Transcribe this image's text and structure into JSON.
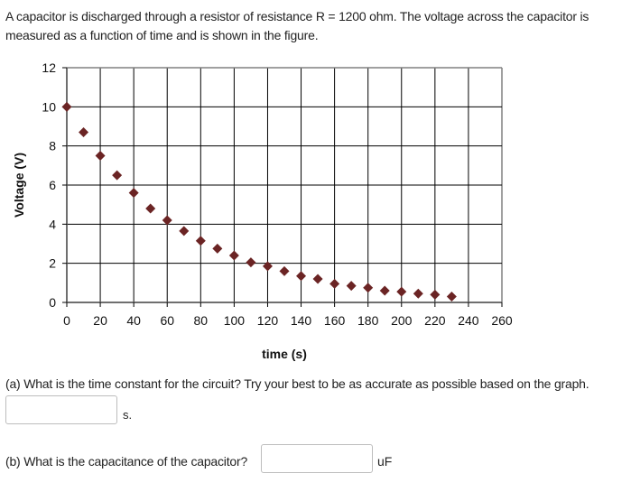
{
  "intro": {
    "text": "A capacitor is discharged through a resistor of resistance R = 1200 ohm.  The voltage across the capacitor is measured as a function of time and is shown in the figure."
  },
  "question_a": {
    "label": "(a) What is the time constant for the circuit?  Try your best to be as accurate as possible based on the graph.",
    "value": "",
    "placeholder": "",
    "unit": "s."
  },
  "question_b": {
    "label": "(b) What is the capacitance of the capacitor?",
    "value": "",
    "placeholder": "",
    "unit": "uF"
  },
  "colors": {
    "marker": "#6b2424",
    "grid": "#000000",
    "frame": "#808080"
  },
  "chart_data": {
    "type": "scatter",
    "title": "",
    "xlabel": "time (s)",
    "ylabel": "Voltage (V)",
    "xlim": [
      0,
      260
    ],
    "ylim": [
      0,
      12
    ],
    "xticks": [
      0,
      20,
      40,
      60,
      80,
      100,
      120,
      140,
      160,
      180,
      200,
      220,
      240,
      260
    ],
    "yticks": [
      0,
      2,
      4,
      6,
      8,
      10,
      12
    ],
    "grid": true,
    "legend": null,
    "marker": "diamond",
    "x": [
      0,
      10,
      20,
      30,
      40,
      50,
      60,
      70,
      80,
      90,
      100,
      110,
      120,
      130,
      140,
      150,
      160,
      170,
      180,
      190,
      200,
      210,
      220,
      230
    ],
    "y": [
      10.0,
      8.7,
      7.5,
      6.5,
      5.6,
      4.8,
      4.2,
      3.65,
      3.15,
      2.75,
      2.4,
      2.05,
      1.85,
      1.6,
      1.35,
      1.2,
      0.95,
      0.85,
      0.75,
      0.6,
      0.55,
      0.45,
      0.4,
      0.3
    ]
  }
}
